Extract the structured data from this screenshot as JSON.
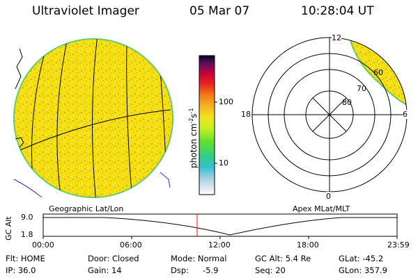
{
  "header": {
    "title": "Ultraviolet Imager",
    "date": "05 Mar 07",
    "time": "10:28:04 UT"
  },
  "colorbar": {
    "unit": "photon cm⁻²s⁻¹",
    "unit_base": "photon cm",
    "unit_exp1": "-2",
    "unit_mid": "s",
    "unit_exp2": "-1",
    "ticks": [
      "100",
      "10"
    ]
  },
  "left_panel": {
    "caption": "Geographic Lat/Lon"
  },
  "right_panel": {
    "caption": "Apex MLat/MLT",
    "mlt_labels": {
      "top": "12",
      "left": "18",
      "right": "6",
      "bottom": "0"
    },
    "lat_labels": [
      "60",
      "70",
      "80"
    ]
  },
  "altitude_plot": {
    "ylabel": "GC Alt",
    "yticks": [
      "9.0",
      "1.8"
    ],
    "xticks": [
      "00:00",
      "06:00",
      "12:00",
      "18:00",
      "23:59"
    ]
  },
  "status": {
    "flt": "Flt: HOME",
    "ip": "IP: 36.0",
    "door": "Door: Closed",
    "gain": "Gain: 14",
    "mode": "Mode: Normal",
    "dsp_label": "Dsp:",
    "dsp_value": "-5.9",
    "gcalt": "GC Alt: 5.4 Re",
    "seq": "Seq: 20",
    "glat": "GLat: -45.2",
    "glon": "GLon: 357.9"
  },
  "colors": {
    "disk": "#f2e010",
    "speckle": "#e8a820",
    "edge": "#66cc66",
    "time_marker": "#ff0000"
  }
}
